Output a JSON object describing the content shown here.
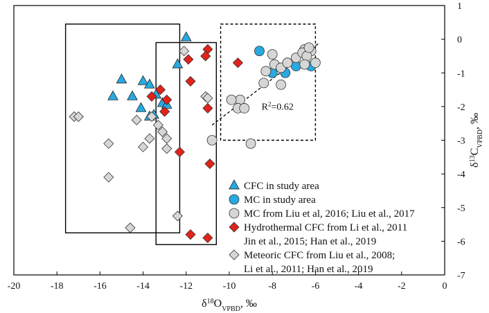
{
  "chart_data": {
    "type": "scatter",
    "title": "",
    "xlabel": {
      "main": "δ",
      "sup": "18",
      "sub_o": "O",
      "sub": "VPBD",
      "unit": ", ‰"
    },
    "ylabel": {
      "main": "δ",
      "sup": "13",
      "sub_c": "C",
      "sub": "VPBD",
      "unit": ", ‰"
    },
    "xlim": [
      -20,
      0
    ],
    "ylim": [
      -7,
      1
    ],
    "xticks": [
      "-20",
      "-18",
      "-16",
      "-14",
      "-12",
      "-10",
      "-8",
      "-6",
      "-4",
      "-2",
      "0"
    ],
    "yticks": [
      "1",
      "0",
      "-1",
      "-2",
      "-3",
      "-4",
      "-5",
      "-6",
      "-7"
    ],
    "annotation": {
      "text": "R",
      "sup": "2",
      "rest": "=0.62",
      "x": -8.5,
      "y": -2.1
    },
    "trend_line": {
      "x": [
        -10.8,
        -5.8
      ],
      "y": [
        -2.55,
        -0.1
      ],
      "style": "dashed"
    },
    "boxes": [
      {
        "x0": -17.6,
        "x1": -12.3,
        "y0": -5.75,
        "y1": 0.45,
        "style": "solid"
      },
      {
        "x0": -13.4,
        "x1": -10.6,
        "y0": -6.1,
        "y1": -0.1,
        "style": "solid"
      },
      {
        "x0": -10.4,
        "x1": -6.0,
        "y0": -3.0,
        "y1": 0.45,
        "style": "dashed"
      }
    ],
    "series": [
      {
        "name": "CFC in study area",
        "marker": "triangle",
        "color": "#29a9e1",
        "x": [
          -12.0,
          -12.4,
          -15.0,
          -15.4,
          -14.0,
          -14.5,
          -13.7,
          -13.4,
          -13.1,
          -14.1,
          -12.9,
          -13.5,
          -13.7
        ],
        "y": [
          0.05,
          -0.75,
          -1.2,
          -1.7,
          -1.25,
          -1.7,
          -1.35,
          -1.65,
          -1.9,
          -2.05,
          -1.95,
          -2.25,
          -2.3
        ]
      },
      {
        "name": "MC in study area",
        "marker": "circle",
        "color": "#29a9e1",
        "x": [
          -8.6,
          -8.0,
          -7.4,
          -6.9,
          -6.2
        ],
        "y": [
          -0.35,
          -1.0,
          -1.0,
          -0.8,
          -0.8
        ]
      },
      {
        "name": "MC from Liu et al, 2016; Liu et al., 2017",
        "marker": "circle",
        "color": "#d6d6d6",
        "x": [
          -8.0,
          -7.9,
          -7.6,
          -7.3,
          -6.9,
          -6.5,
          -6.3,
          -6.2,
          -6.0,
          -6.6,
          -6.4,
          -6.3,
          -6.5,
          -8.3,
          -8.4,
          -7.6,
          -9.5,
          -9.9,
          -9.6,
          -9.3,
          -9.0,
          -10.8
        ],
        "y": [
          -0.45,
          -0.75,
          -0.85,
          -0.7,
          -0.55,
          -0.3,
          -0.3,
          -0.35,
          -0.7,
          -0.4,
          -0.5,
          -0.25,
          -0.75,
          -0.95,
          -1.3,
          -1.35,
          -1.8,
          -1.8,
          -2.05,
          -2.05,
          -3.1,
          -3.0
        ]
      },
      {
        "name": "Hydrothermal CFC from Li et al., 2011 Jin et al., 2015; Han et al., 2019",
        "marker": "diamond",
        "color": "#e2231a",
        "x": [
          -9.6,
          -11.0,
          -11.1,
          -11.9,
          -11.8,
          -11.0,
          -13.6,
          -13.2,
          -12.9,
          -13.0,
          -12.3,
          -10.9,
          -11.8,
          -11.0
        ],
        "y": [
          -0.7,
          -0.3,
          -0.5,
          -0.6,
          -1.25,
          -2.05,
          -1.7,
          -1.5,
          -1.8,
          -2.15,
          -3.35,
          -3.7,
          -5.8,
          -5.9
        ]
      },
      {
        "name": "Meteoric CFC from Liu et al., 2008; Li et al., 2011; Han et al., 2019",
        "marker": "diamond",
        "color": "#d6d6d6",
        "x": [
          -12.1,
          -17.2,
          -17.0,
          -14.3,
          -13.6,
          -13.3,
          -13.1,
          -12.9,
          -13.7,
          -14.0,
          -12.9,
          -15.6,
          -15.6,
          -14.6,
          -12.4,
          -11.1,
          -11.0
        ],
        "y": [
          -0.35,
          -2.3,
          -2.3,
          -2.4,
          -2.3,
          -2.55,
          -2.75,
          -2.95,
          -2.95,
          -3.2,
          -3.25,
          -3.1,
          -4.1,
          -5.6,
          -5.25,
          -1.7,
          -1.75
        ]
      }
    ],
    "legend": {
      "placement": "lower-right",
      "entries": [
        {
          "label": "CFC in study area",
          "marker": "triangle",
          "color": "#29a9e1"
        },
        {
          "label": "MC in study area",
          "marker": "circle",
          "color": "#29a9e1"
        },
        {
          "label": "MC from Liu et al, 2016; Liu et al., 2017",
          "marker": "circle",
          "color": "#d6d6d6"
        },
        {
          "label": "Hydrothermal CFC from Li et al., 2011",
          "marker": "diamond",
          "color": "#e2231a"
        },
        {
          "label": "Jin et al., 2015; Han et al., 2019",
          "marker": "none",
          "color": ""
        },
        {
          "label": "Meteoric CFC from Liu et al., 2008;",
          "marker": "diamond",
          "color": "#d6d6d6"
        },
        {
          "label": "Li et al., 2011; Han et al., 2019",
          "marker": "none",
          "color": ""
        }
      ]
    }
  }
}
